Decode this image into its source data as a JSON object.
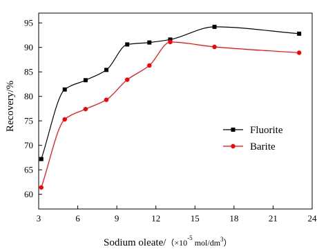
{
  "chart_data": {
    "type": "line",
    "xlabel_prefix": "Sodium oleate/",
    "xlabel_unit_open": "（×10",
    "xlabel_exp": "-5",
    "xlabel_unit_mid": "mol/dm",
    "xlabel_unit_exp": "3",
    "xlabel_unit_close": "）",
    "ylabel": "Recovery/%",
    "xlim": [
      3,
      24
    ],
    "ylim": [
      57,
      97
    ],
    "xticks": [
      3,
      6,
      9,
      12,
      15,
      18,
      21,
      24
    ],
    "yticks": [
      60,
      65,
      70,
      75,
      80,
      85,
      90,
      95
    ],
    "grid": false,
    "legend_position": "right",
    "series": [
      {
        "name": "Fluorite",
        "marker": "square",
        "color": "#000000",
        "x": [
          3.2,
          5.0,
          6.6,
          8.2,
          9.8,
          11.5,
          13.1,
          16.5,
          23.0
        ],
        "y": [
          67.2,
          81.4,
          83.3,
          85.4,
          90.6,
          91.0,
          91.6,
          94.2,
          92.8
        ]
      },
      {
        "name": "Barite",
        "marker": "circle",
        "color": "#ff0000",
        "x": [
          3.2,
          5.0,
          6.6,
          8.2,
          9.8,
          11.5,
          13.1,
          16.5,
          23.0
        ],
        "y": [
          61.4,
          75.3,
          77.4,
          79.3,
          83.4,
          86.3,
          91.1,
          90.1,
          88.9
        ]
      }
    ]
  }
}
